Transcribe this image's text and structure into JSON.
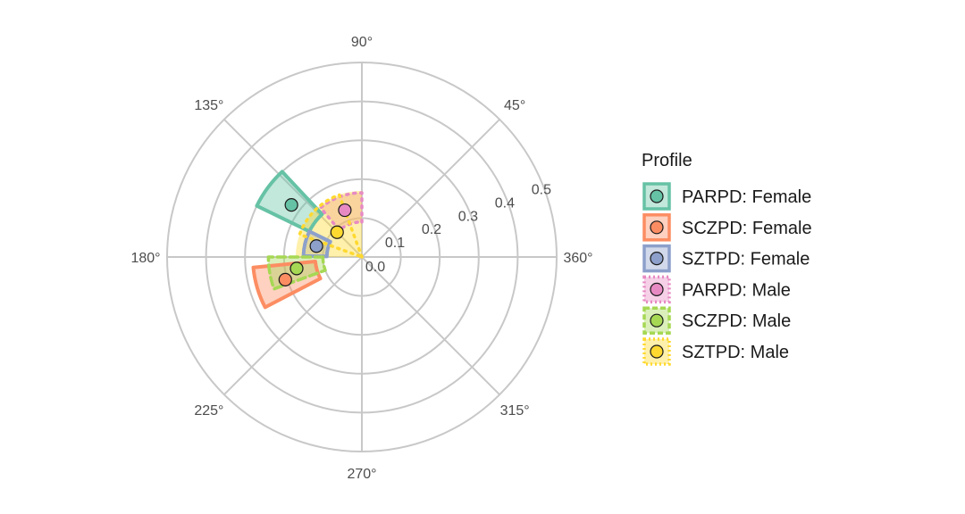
{
  "chart_data": {
    "type": "polar-sector",
    "theta_ticks": [
      "90°",
      "45°",
      "360°",
      "315°",
      "270°",
      "225°",
      "180°",
      "135°"
    ],
    "theta_tick_values": [
      90,
      45,
      360,
      315,
      270,
      225,
      180,
      135
    ],
    "r_ticks": [
      "0.0",
      "0.1",
      "0.2",
      "0.3",
      "0.4",
      "0.5"
    ],
    "r_tick_values": [
      0.0,
      0.1,
      0.2,
      0.3,
      0.4,
      0.5
    ],
    "rlim": [
      0,
      0.5
    ],
    "grid": true,
    "legend": {
      "title": "Profile",
      "position": "right"
    },
    "series": [
      {
        "name": "PARPD: Female",
        "color": "#66C2A5",
        "dash": "solid",
        "theta_center": 143.5,
        "theta_range": [
          133,
          154
        ],
        "r_range": [
          0.15,
          0.3
        ],
        "r_point": 0.225
      },
      {
        "name": "SCZPD: Female",
        "color": "#FC8D62",
        "dash": "solid",
        "theta_center": 196.5,
        "theta_range": [
          185.5,
          207.5
        ],
        "r_range": [
          0.12,
          0.28
        ],
        "r_point": 0.205
      },
      {
        "name": "SZTPD: Female",
        "color": "#8DA0CB",
        "dash": "solid",
        "theta_center": 166.5,
        "theta_range": [
          154,
          179
        ],
        "r_range": [
          0.09,
          0.15
        ],
        "r_point": 0.12
      },
      {
        "name": "PARPD: Male",
        "color": "#E78AC3",
        "dash": "dotted",
        "theta_center": 110,
        "theta_range": [
          90,
          130
        ],
        "r_range": [
          0.09,
          0.165
        ],
        "r_point": 0.128
      },
      {
        "name": "SCZPD: Male",
        "color": "#A6D854",
        "dash": "dashed",
        "theta_center": 190,
        "theta_range": [
          180,
          200
        ],
        "r_range": [
          0.1,
          0.24
        ],
        "r_point": 0.17
      },
      {
        "name": "SZTPD: Male",
        "color": "#FFD92F",
        "dash": "dotted",
        "theta_center": 135,
        "theta_range": [
          90,
          180
        ],
        "r_range": [
          0.0,
          0.17
        ],
        "r_point": 0.09,
        "outline_range": [
          110,
          160
        ]
      }
    ]
  }
}
